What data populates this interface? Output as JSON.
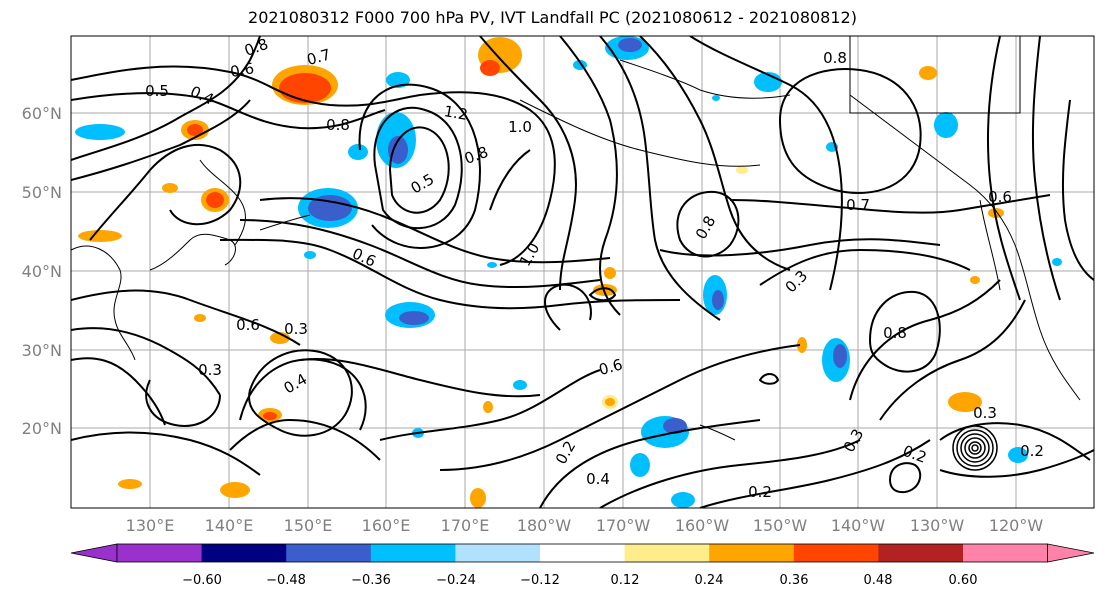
{
  "map": {
    "title": "2021080312 F000 700 hPa PV, IVT Landfall PC (2021080612 - 2021080812)",
    "projection": "PlateCarree centered on dateline (lon 120°E → 110°W, lat 10°N → 70°N)",
    "lat_labels": [
      "60°N",
      "50°N",
      "40°N",
      "30°N",
      "20°N"
    ],
    "lon_labels": [
      "130°E",
      "140°E",
      "150°E",
      "160°E",
      "170°E",
      "180°W",
      "170°W",
      "160°W",
      "150°W",
      "140°W",
      "130°W",
      "120°W"
    ],
    "contour_labels": [
      "0.8",
      "0.7",
      "0.6",
      "0.5",
      "0.4",
      "0.8",
      "1.2",
      "1.0",
      "0.8",
      "0.5",
      "0.6",
      "1.0",
      "0.8",
      "0.7",
      "0.3",
      "0.8",
      "0.6",
      "0.3",
      "0.4",
      "0.6",
      "0.3",
      "0.2",
      "0.4",
      "0.2",
      "0.2",
      "0.3",
      "0.3",
      "0.2",
      "0.8",
      "0.6"
    ],
    "colors": {
      "shading": [
        "#9932cc",
        "#000080",
        "#3a5fcd",
        "#00bfff",
        "#b0e2ff",
        "#ffffff",
        "#ffec8b",
        "#ffa500",
        "#ff4500",
        "#b22222",
        "#ff82ab"
      ],
      "contour": "#000000",
      "grid": "#aaaaaa"
    }
  },
  "colorbar": {
    "ticks": [
      "−0.60",
      "−0.48",
      "−0.36",
      "−0.24",
      "−0.12",
      "0.12",
      "0.24",
      "0.36",
      "0.48",
      "0.60"
    ]
  }
}
